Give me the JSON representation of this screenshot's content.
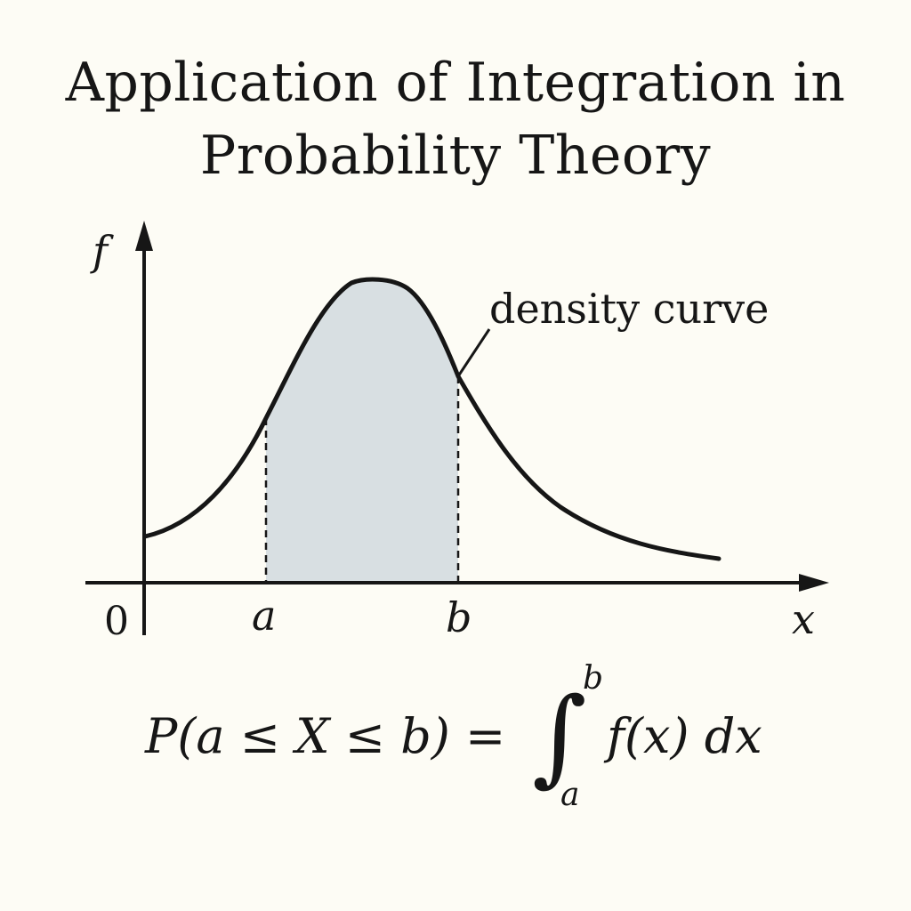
{
  "title": {
    "line1": "Application of Integration in",
    "line2": "Probability Theory"
  },
  "axes": {
    "y_label": "f",
    "x_label": "x",
    "origin_label": "0"
  },
  "bounds": {
    "lower": "a",
    "upper": "b"
  },
  "callout": {
    "label": "density curve"
  },
  "formula": {
    "lhs": "P(a ≤ X ≤ b) =",
    "integral_sign": "∫",
    "upper_limit": "b",
    "lower_limit": "a",
    "integrand": "f(x) dx"
  },
  "colors": {
    "shaded_region": "#d8dfe2",
    "curve": "#161616",
    "background": "#fdfcf5"
  }
}
